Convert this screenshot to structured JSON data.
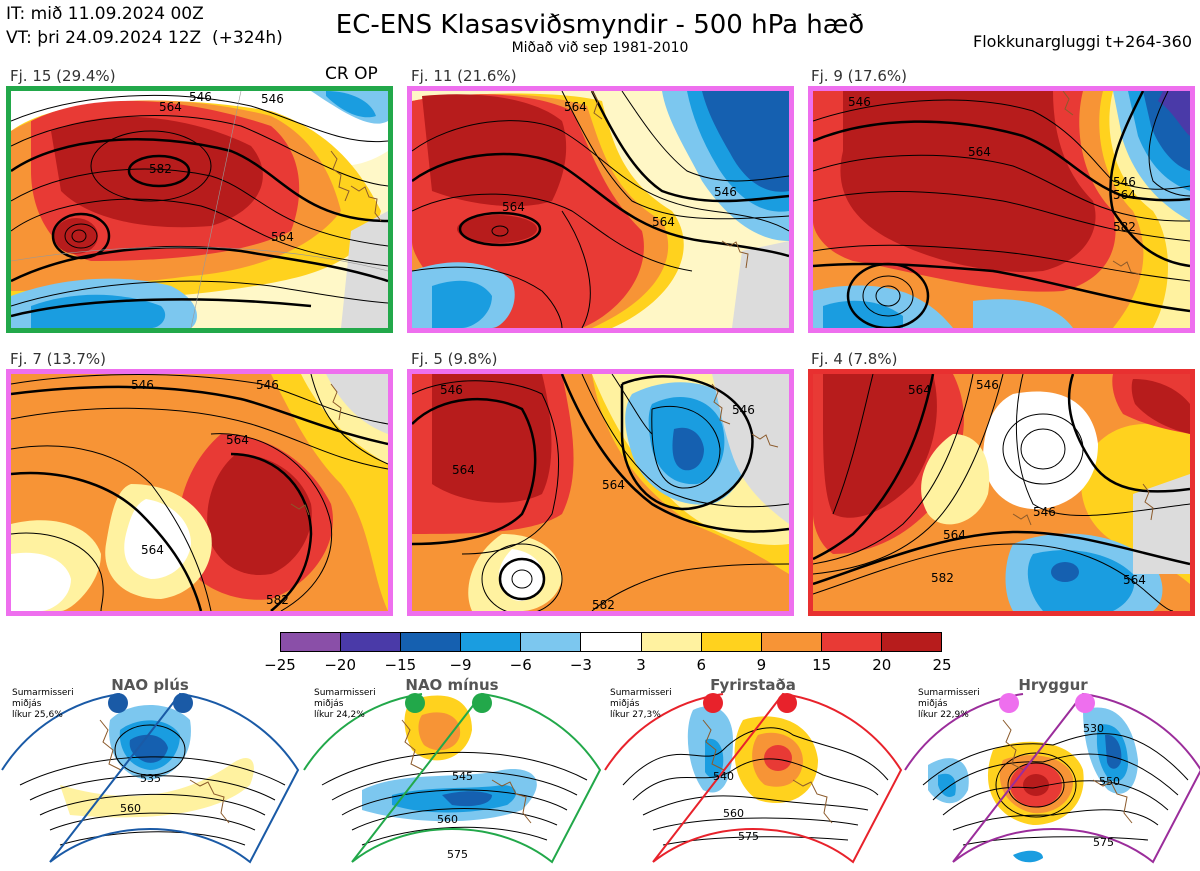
{
  "header": {
    "it_line": "IT: mið 11.09.2024 00Z",
    "vt_line": "VT: þri 24.09.2024 12Z  (+324h)",
    "title": "EC-ENS Klasasviðsmyndir - 500 hPa hæð",
    "subtitle": "Miðað við sep 1981-2010",
    "window": "Flokkunargluggi t+264-360"
  },
  "clusters": [
    {
      "label": "Fj. 15 (29.4%)",
      "border": "#22a84a",
      "extra": "CR OP",
      "contours": [
        "564",
        "582",
        "546",
        "546",
        "564"
      ]
    },
    {
      "label": "Fj. 11 (21.6%)",
      "border": "#ee6fee",
      "contours": [
        "564",
        "564",
        "546",
        "564"
      ]
    },
    {
      "label": "Fj. 9 (17.6%)",
      "border": "#ee6fee",
      "contours": [
        "546",
        "564",
        "582",
        "546",
        "564"
      ]
    },
    {
      "label": "Fj. 7 (13.7%)",
      "border": "#ee6fee",
      "contours": [
        "546",
        "546",
        "564",
        "564",
        "582"
      ]
    },
    {
      "label": "Fj. 5 (9.8%)",
      "border": "#ee6fee",
      "contours": [
        "546",
        "564",
        "564",
        "582",
        "546"
      ]
    },
    {
      "label": "Fj. 4 (7.8%)",
      "border": "#e83030",
      "contours": [
        "564",
        "546",
        "564",
        "582",
        "564",
        "546"
      ]
    }
  ],
  "colorbar": {
    "ticks": [
      "−25",
      "−20",
      "−15",
      "−9",
      "−6",
      "−3",
      "3",
      "6",
      "9",
      "15",
      "20",
      "25"
    ],
    "colors": [
      "#8a4fa8",
      "#4a3aa8",
      "#1560b0",
      "#1a9de0",
      "#7cc7ef",
      "#ffffff",
      "#fff2a0",
      "#ffd21e",
      "#f79436",
      "#e83a35",
      "#b71c1c"
    ]
  },
  "regimes": [
    {
      "name": "NAO plús",
      "info": "Sumarmisseri\nmiðjás\nlíkur 25,6%",
      "color": "#1a5aa6",
      "contours": [
        "535",
        "560"
      ]
    },
    {
      "name": "NAO mínus",
      "info": "Sumarmisseri\nmiðjás\nlíkur 24,2%",
      "color": "#22a84a",
      "contours": [
        "545",
        "560",
        "575"
      ]
    },
    {
      "name": "Fyrirstaða",
      "info": "Sumarmisseri\nmiðjás\nlíkur 27,3%",
      "color": "#e8222b",
      "contours": [
        "540",
        "560",
        "575"
      ]
    },
    {
      "name": "Hryggur",
      "info": "Sumarmisseri\nmiðjás\nlíkur 22,9%",
      "color": "#9b2d9b",
      "dot_color": "#ee6fee",
      "contours": [
        "530",
        "550",
        "575"
      ]
    }
  ]
}
